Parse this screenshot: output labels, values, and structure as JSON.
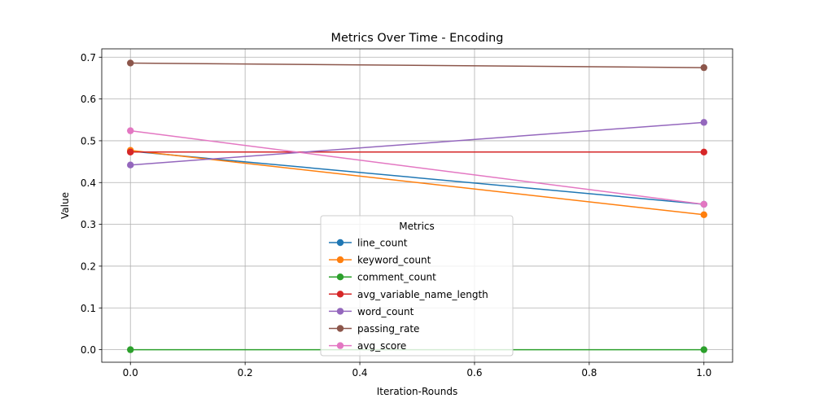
{
  "chart_data": {
    "type": "line",
    "title": "Metrics Over Time - Encoding",
    "xlabel": "Iteration-Rounds",
    "ylabel": "Value",
    "x": [
      0.0,
      1.0
    ],
    "xlim": [
      -0.05,
      1.05
    ],
    "ylim": [
      -0.03,
      0.72
    ],
    "xticks": [
      0.0,
      0.2,
      0.4,
      0.6,
      0.8,
      1.0
    ],
    "xtick_labels": [
      "0.0",
      "0.2",
      "0.4",
      "0.6",
      "0.8",
      "1.0"
    ],
    "yticks": [
      0.0,
      0.1,
      0.2,
      0.3,
      0.4,
      0.5,
      0.6,
      0.7
    ],
    "ytick_labels": [
      "0.0",
      "0.1",
      "0.2",
      "0.3",
      "0.4",
      "0.5",
      "0.6",
      "0.7"
    ],
    "grid": true,
    "legend": {
      "title": "Metrics",
      "placement": "lower-center"
    },
    "series": [
      {
        "name": "line_count",
        "color": "#1f77b4",
        "values": [
          0.475,
          0.348
        ]
      },
      {
        "name": "keyword_count",
        "color": "#ff7f0e",
        "values": [
          0.477,
          0.323
        ]
      },
      {
        "name": "comment_count",
        "color": "#2ca02c",
        "values": [
          0.0,
          0.0
        ]
      },
      {
        "name": "avg_variable_name_length",
        "color": "#d62728",
        "values": [
          0.473,
          0.473
        ]
      },
      {
        "name": "word_count",
        "color": "#9467bd",
        "values": [
          0.442,
          0.544
        ]
      },
      {
        "name": "passing_rate",
        "color": "#8c564b",
        "values": [
          0.686,
          0.675
        ]
      },
      {
        "name": "avg_score",
        "color": "#e377c2",
        "values": [
          0.524,
          0.348
        ]
      }
    ]
  }
}
